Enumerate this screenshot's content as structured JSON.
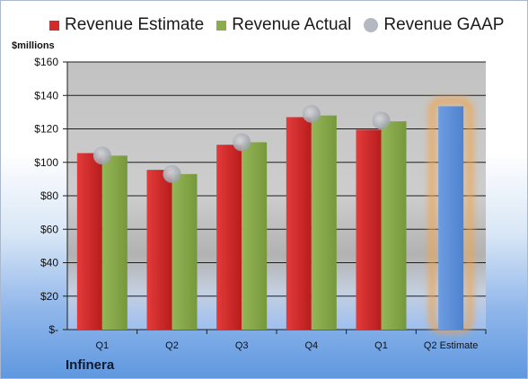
{
  "chart_data": {
    "type": "bar",
    "unit_label": "$millions",
    "company": "Infinera",
    "categories": [
      "Q1",
      "Q2",
      "Q3",
      "Q4",
      "Q1",
      "Q2 Estimate"
    ],
    "ylim": [
      0,
      160
    ],
    "yticks": [
      0,
      20,
      40,
      60,
      80,
      100,
      120,
      140,
      160
    ],
    "ytick_labels": [
      "$-",
      "$20",
      "$40",
      "$60",
      "$80",
      "$100",
      "$120",
      "$140",
      "$160"
    ],
    "grid": true,
    "legend_position": "top",
    "series": [
      {
        "name": "Revenue Estimate",
        "color": "#d42a2a",
        "values": [
          105.5,
          95.5,
          110.5,
          127,
          119.5,
          null
        ]
      },
      {
        "name": "Revenue Actual",
        "color": "#8aac4a",
        "values": [
          104,
          93,
          112,
          128,
          124.5,
          null
        ]
      },
      {
        "name": "Revenue GAAP",
        "color": "#a9aeb8",
        "type": "marker",
        "values": [
          104,
          93,
          112,
          129,
          125,
          null
        ]
      }
    ],
    "estimate": {
      "category": "Q2 Estimate",
      "value": 133.5,
      "color": "#5b8fdc",
      "glow_color": "#f0a24a"
    }
  }
}
